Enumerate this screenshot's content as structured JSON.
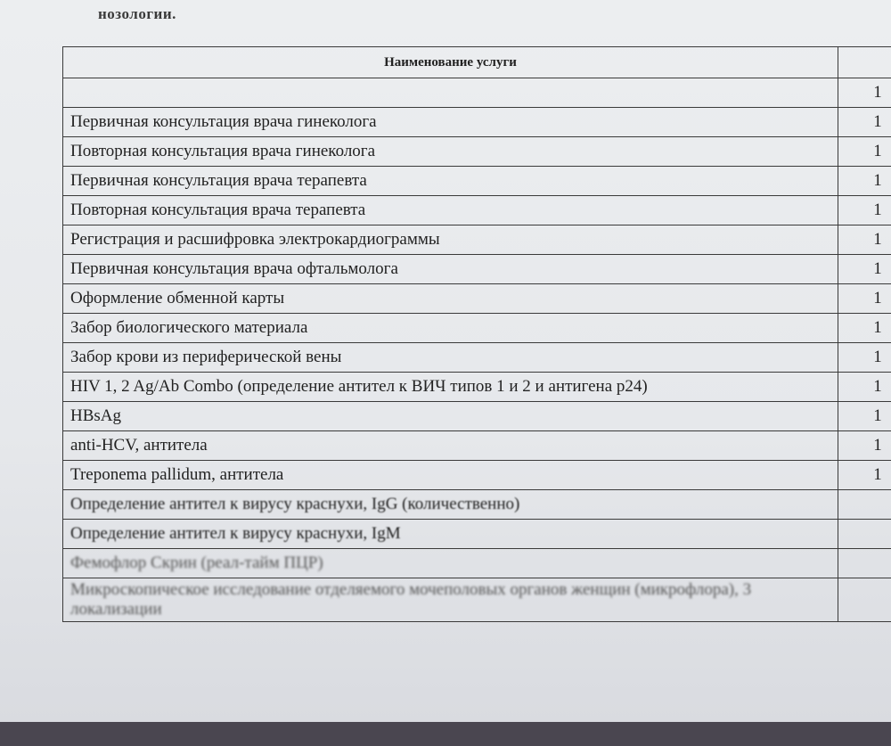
{
  "intro": "нозологии.",
  "table": {
    "header": "Наименование услуги",
    "rows": [
      {
        "qty": 1
      },
      {
        "name": "Первичная консультация врача гинеколога",
        "qty": 1
      },
      {
        "name": "Повторная консультация врача гинеколога",
        "qty": 1
      },
      {
        "name": "Первичная консультация врача терапевта",
        "qty": 1
      },
      {
        "name": "Повторная консультация врача терапевта",
        "qty": 1
      },
      {
        "name": "Регистрация и расшифровка электрокардиограммы",
        "qty": 1
      },
      {
        "name": "Первичная консультация врача офтальмолога",
        "qty": 1
      },
      {
        "name": "Оформление обменной карты",
        "qty": 1
      },
      {
        "name": "Забор биологического материала",
        "qty": 1
      },
      {
        "name": "Забор крови из периферической вены",
        "qty": 1
      },
      {
        "name": "HIV 1, 2 Ag/Ab Combo (определение антител к ВИЧ типов 1 и 2 и антигена p24)",
        "qty": 1
      },
      {
        "name": "HBsAg",
        "qty": 1
      },
      {
        "name": "anti-HCV, антитела",
        "qty": 1
      },
      {
        "name": "Treponema pallidum, антитела",
        "qty": 1
      },
      {
        "name": "Определение антител к вирусу краснухи, IgG (количественно)"
      },
      {
        "name": "Определение антител к вирусу краснухи, IgM"
      },
      {
        "name": "Фемофлор Скрин (реал-тайм ПЦР)"
      },
      {
        "name": "Микроскопическое исследование отделяемого мочеполовых органов женщин (микрофлора), 3 локализации"
      }
    ]
  }
}
